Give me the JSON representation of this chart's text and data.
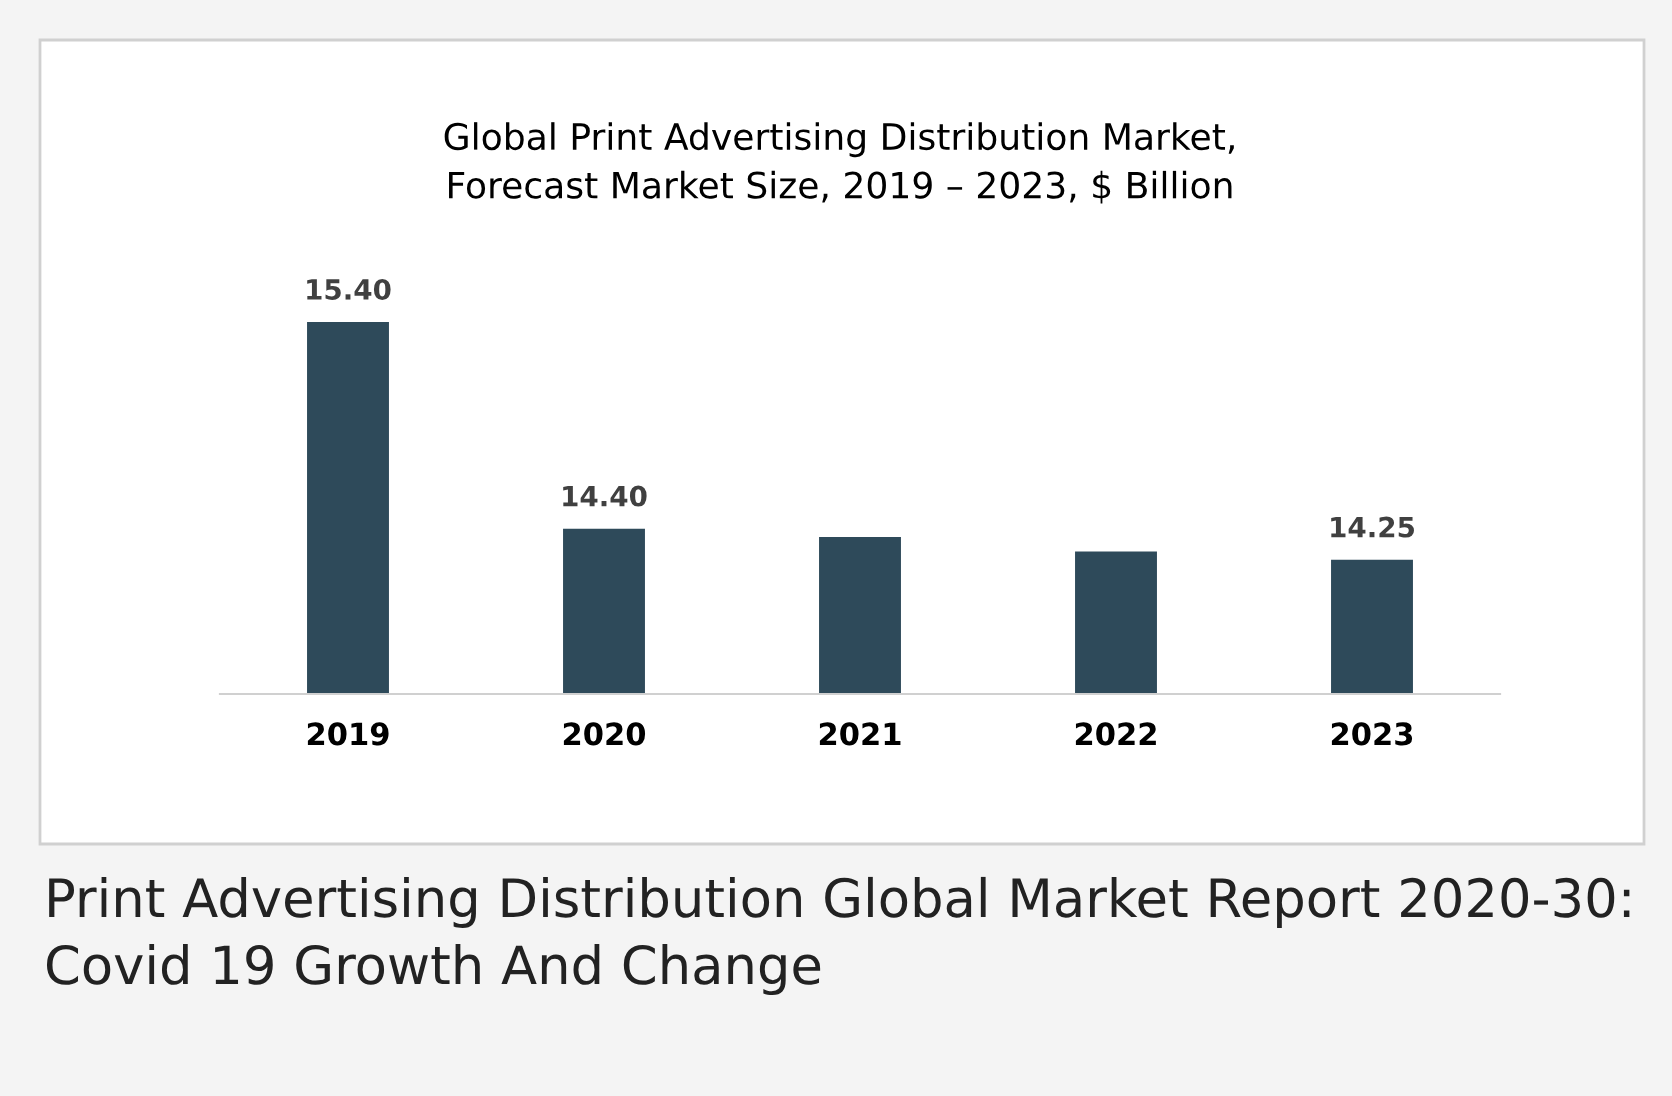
{
  "chart_data": {
    "type": "bar",
    "title": "Global Print Advertising Distribution Market,\nForecast Market Size, 2019 – 2023, $ Billion",
    "categories": [
      "2019",
      "2020",
      "2021",
      "2022",
      "2023"
    ],
    "values": [
      15.4,
      14.4,
      14.36,
      14.29,
      14.25
    ],
    "value_labels": [
      "15.40",
      "14.40",
      null,
      null,
      "14.25"
    ],
    "color": "#2e4a5a",
    "ylim": [
      13.6,
      15.4
    ],
    "tick_labels": "x",
    "grid": false,
    "legend": false,
    "annotations": [
      "Print Advertising Distribution Global Market Report 2020-30: Covid 19 Growth And Change"
    ]
  }
}
